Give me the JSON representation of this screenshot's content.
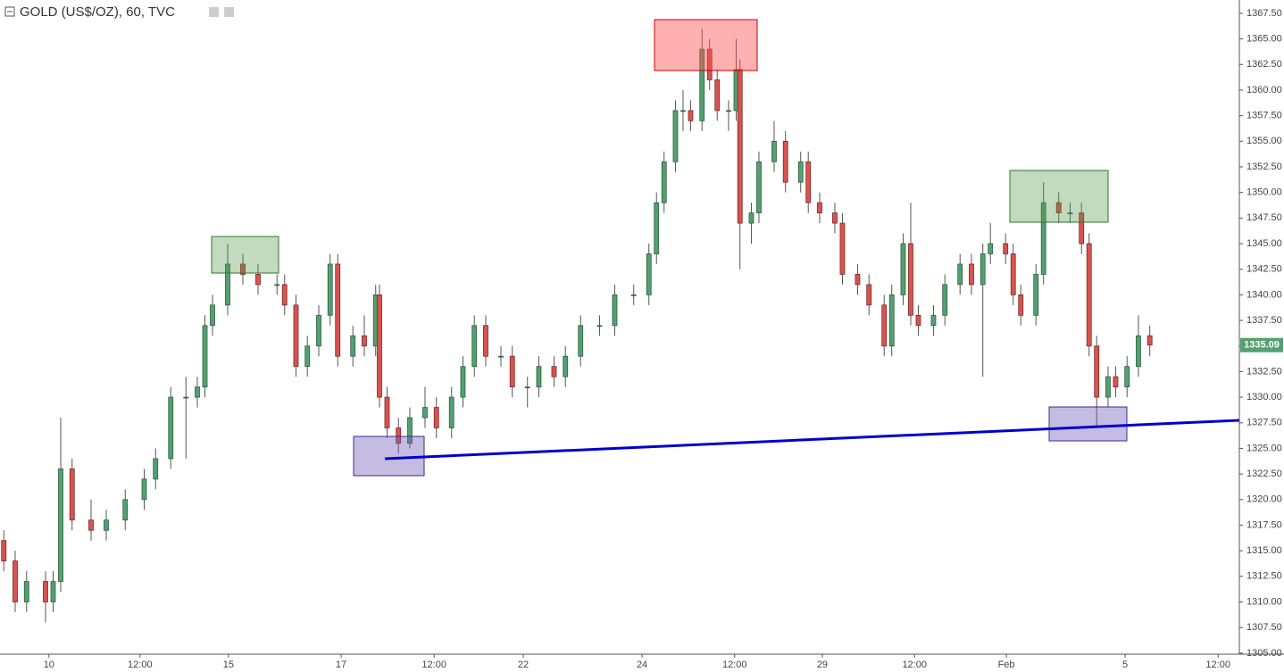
{
  "chart_data": {
    "type": "candlestick",
    "title": "GOLD (US$/OZ), 60, TVC",
    "x": [
      0,
      3,
      6,
      11,
      13,
      15,
      18,
      23,
      27,
      32,
      37,
      40,
      44,
      48,
      51,
      53,
      55,
      59,
      63,
      67,
      72,
      74,
      77,
      80,
      83,
      86,
      88,
      92,
      95,
      98,
      99,
      101,
      104,
      107,
      111,
      114,
      118,
      121,
      124,
      127,
      131,
      134,
      138,
      141,
      145,
      148,
      152,
      157,
      161,
      166,
      170,
      172,
      174,
      177,
      179,
      181,
      184,
      186,
      188,
      191,
      193,
      194,
      197,
      199,
      203,
      206,
      210,
      212,
      215,
      219,
      221,
      225,
      228,
      232,
      234,
      237,
      239,
      241,
      245,
      248,
      252,
      255,
      258,
      260,
      264,
      266,
      268,
      272,
      274,
      278,
      281,
      284,
      286,
      288,
      291,
      293,
      296,
      299,
      302
    ],
    "open": [
      1316,
      1314,
      1310,
      1312,
      1310,
      1312,
      1323,
      1318,
      1317,
      1318,
      1320,
      1322,
      1324,
      1330,
      1330,
      1331,
      1337,
      1339,
      1343,
      1342,
      1341,
      1341,
      1339,
      1333,
      1335,
      1338,
      1343,
      1334,
      1336,
      1335,
      1340,
      1330,
      1327,
      1325.5,
      1328,
      1329,
      1327,
      1330,
      1333,
      1337,
      1334,
      1334,
      1331,
      1331,
      1333,
      1332,
      1334,
      1337,
      1337,
      1340,
      1340,
      1344,
      1349,
      1353,
      1358,
      1358,
      1357,
      1364,
      1361,
      1358,
      1358,
      1362,
      1347,
      1348,
      1353,
      1355,
      1351,
      1353,
      1349,
      1348,
      1347,
      1342,
      1341,
      1339,
      1335,
      1340,
      1345,
      1338,
      1337,
      1338,
      1341,
      1343,
      1341,
      1344,
      1345,
      1344,
      1340,
      1338,
      1342,
      1349,
      1348,
      1348,
      1345,
      1335,
      1330,
      1332,
      1331,
      1333,
      1336
    ],
    "high": [
      1317,
      1315,
      1313,
      1313,
      1313,
      1328,
      1324,
      1320,
      1319,
      1321,
      1323,
      1325,
      1331,
      1332,
      1332,
      1338,
      1340,
      1345,
      1344,
      1343,
      1342,
      1342,
      1340,
      1336,
      1339,
      1344,
      1344,
      1337,
      1338,
      1341,
      1341,
      1331,
      1328,
      1329,
      1331,
      1330,
      1331,
      1334,
      1338,
      1338,
      1335,
      1335,
      1332,
      1334,
      1334,
      1335,
      1338,
      1338,
      1341,
      1341,
      1345,
      1350,
      1354,
      1359,
      1360,
      1359,
      1366,
      1365,
      1362,
      1359,
      1365,
      1363,
      1349,
      1354,
      1357,
      1356,
      1354,
      1354,
      1350,
      1349,
      1348,
      1343,
      1342,
      1340,
      1341,
      1346,
      1349,
      1339,
      1339,
      1342,
      1344,
      1344,
      1345,
      1347,
      1346,
      1345,
      1341,
      1343,
      1351,
      1350,
      1349,
      1349,
      1346,
      1336,
      1333,
      1333,
      1334,
      1338,
      1337
    ],
    "low": [
      1313,
      1309,
      1309,
      1308,
      1309,
      1311,
      1317,
      1316,
      1316,
      1317,
      1319,
      1321,
      1323,
      1324,
      1329,
      1330,
      1336,
      1338,
      1341,
      1340,
      1340,
      1338,
      1332,
      1332,
      1334,
      1337,
      1333,
      1333,
      1334,
      1334,
      1329,
      1326,
      1324.5,
      1325,
      1327,
      1326,
      1326,
      1329,
      1332,
      1333,
      1333,
      1330,
      1329,
      1330,
      1331,
      1331,
      1333,
      1336,
      1336,
      1339,
      1339,
      1343,
      1348,
      1352,
      1356,
      1356,
      1356,
      1360,
      1357,
      1356,
      1357,
      1342.5,
      1345,
      1347,
      1352,
      1350,
      1350,
      1348,
      1347,
      1346,
      1341,
      1340,
      1338,
      1334,
      1334,
      1339,
      1337,
      1336,
      1336,
      1337,
      1340,
      1340,
      1332,
      1343,
      1343,
      1339,
      1337,
      1337,
      1341,
      1347,
      1347,
      1344,
      1334,
      1327,
      1329,
      1330,
      1330,
      1332,
      1334
    ],
    "close": [
      1314,
      1310,
      1312,
      1310,
      1312,
      1323,
      1318,
      1317,
      1318,
      1320,
      1322,
      1324,
      1330,
      1330,
      1331,
      1337,
      1339,
      1343,
      1342,
      1341,
      1341,
      1339,
      1333,
      1335,
      1338,
      1343,
      1334,
      1336,
      1335,
      1340,
      1330,
      1327,
      1325.5,
      1328,
      1329,
      1327,
      1330,
      1333,
      1337,
      1334,
      1334,
      1331,
      1331,
      1333,
      1332,
      1334,
      1337,
      1337,
      1340,
      1340,
      1344,
      1349,
      1353,
      1358,
      1358,
      1357,
      1364,
      1361,
      1358,
      1358,
      1362,
      1347,
      1348,
      1353,
      1355,
      1351,
      1353,
      1349,
      1348,
      1347,
      1342,
      1341,
      1339,
      1335,
      1340,
      1345,
      1338,
      1337,
      1338,
      1341,
      1343,
      1341,
      1344,
      1345,
      1344,
      1340,
      1338,
      1342,
      1349,
      1348,
      1348,
      1345,
      1335,
      1330,
      1332,
      1331,
      1333,
      1336,
      1335.09
    ],
    "up_color": "#53a070",
    "down_color": "#d9534f",
    "xlim": [
      -1,
      325.6
    ],
    "xticks": [
      {
        "value": 11.9,
        "label": "10"
      },
      {
        "value": 35.9,
        "label": "12:00"
      },
      {
        "value": 59.2,
        "label": "15"
      },
      {
        "value": 88.9,
        "label": "17"
      },
      {
        "value": 113.4,
        "label": "12:00"
      },
      {
        "value": 136.9,
        "label": "22"
      },
      {
        "value": 168.2,
        "label": "24"
      },
      {
        "value": 192.6,
        "label": "12:00"
      },
      {
        "value": 215.7,
        "label": "29"
      },
      {
        "value": 240,
        "label": "12:00"
      },
      {
        "value": 264.2,
        "label": "Feb"
      },
      {
        "value": 295.5,
        "label": "5"
      },
      {
        "value": 320,
        "label": "12:00"
      }
    ],
    "ylim": [
      1304.9,
      1368.8
    ],
    "yticks": [
      {
        "value": 1305,
        "label": "1305.00"
      },
      {
        "value": 1307.5,
        "label": "1307.50"
      },
      {
        "value": 1310,
        "label": "1310.00"
      },
      {
        "value": 1312.5,
        "label": "1312.50"
      },
      {
        "value": 1315,
        "label": "1315.00"
      },
      {
        "value": 1317.5,
        "label": "1317.50"
      },
      {
        "value": 1320,
        "label": "1320.00"
      },
      {
        "value": 1322.5,
        "label": "1322.50"
      },
      {
        "value": 1325,
        "label": "1325.00"
      },
      {
        "value": 1327.5,
        "label": "1327.50"
      },
      {
        "value": 1330,
        "label": "1330.00"
      },
      {
        "value": 1332.5,
        "label": "1332.50"
      },
      {
        "value": 1335,
        "label": "1335.00"
      },
      {
        "value": 1337.5,
        "label": "1337.50"
      },
      {
        "value": 1340,
        "label": "1340.00"
      },
      {
        "value": 1342.5,
        "label": "1342.50"
      },
      {
        "value": 1345,
        "label": "1345.00"
      },
      {
        "value": 1347.5,
        "label": "1347.50"
      },
      {
        "value": 1350,
        "label": "1350.00"
      },
      {
        "value": 1352.5,
        "label": "1352.50"
      },
      {
        "value": 1355,
        "label": "1355.00"
      },
      {
        "value": 1357.5,
        "label": "1357.50"
      },
      {
        "value": 1360,
        "label": "1360.00"
      },
      {
        "value": 1362.5,
        "label": "1362.50"
      },
      {
        "value": 1365,
        "label": "1365.00"
      },
      {
        "value": 1367.5,
        "label": "1367.50"
      }
    ]
  }
}
